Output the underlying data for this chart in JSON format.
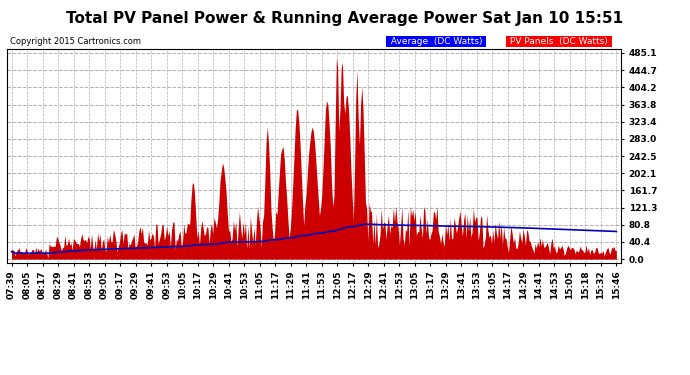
{
  "title": "Total PV Panel Power & Running Average Power Sat Jan 10 15:51",
  "copyright": "Copyright 2015 Cartronics.com",
  "legend_avg": "Average  (DC Watts)",
  "legend_pv": "PV Panels  (DC Watts)",
  "ylabel_values": [
    0.0,
    40.4,
    80.8,
    121.3,
    161.7,
    202.1,
    242.5,
    283.0,
    323.4,
    363.8,
    404.2,
    444.7,
    485.1
  ],
  "ymax": 495,
  "ymin": -8,
  "bg_color": "#ffffff",
  "plot_bg_color": "#ffffff",
  "grid_color": "#b0b0b0",
  "pv_color": "#cc0000",
  "avg_color": "#0000bb",
  "title_fontsize": 11,
  "tick_fontsize": 6.5
}
